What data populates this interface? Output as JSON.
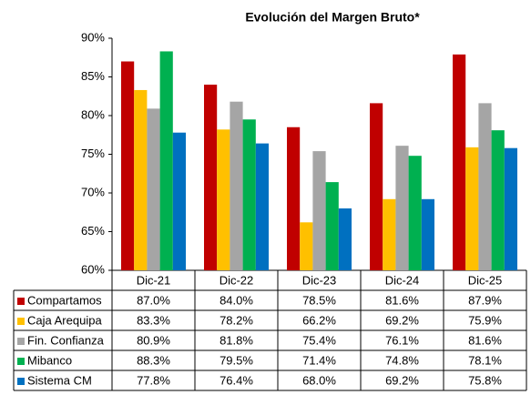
{
  "chart_data": {
    "type": "bar",
    "title": "Evolución del Margen Bruto*",
    "categories": [
      "Dic-21",
      "Dic-22",
      "Dic-23",
      "Dic-24",
      "Dic-25"
    ],
    "series": [
      {
        "name": "Compartamos",
        "color": "#c00000",
        "values": [
          87.0,
          84.0,
          78.5,
          81.6,
          87.9
        ],
        "value_labels": [
          "87.0%",
          "84.0%",
          "78.5%",
          "81.6%",
          "87.9%"
        ]
      },
      {
        "name": "Caja Arequipa",
        "color": "#ffc000",
        "values": [
          83.3,
          78.2,
          66.2,
          69.2,
          75.9
        ],
        "value_labels": [
          "83.3%",
          "78.2%",
          "66.2%",
          "69.2%",
          "75.9%"
        ]
      },
      {
        "name": "Fin. Confianza",
        "color": "#a5a5a5",
        "values": [
          80.9,
          81.8,
          75.4,
          76.1,
          81.6
        ],
        "value_labels": [
          "80.9%",
          "81.8%",
          "75.4%",
          "76.1%",
          "81.6%"
        ]
      },
      {
        "name": "Mibanco",
        "color": "#00b050",
        "values": [
          88.3,
          79.5,
          71.4,
          74.8,
          78.1
        ],
        "value_labels": [
          "88.3%",
          "79.5%",
          "71.4%",
          "74.8%",
          "78.1%"
        ]
      },
      {
        "name": "Sistema CM",
        "color": "#0070c0",
        "values": [
          77.8,
          76.4,
          68.0,
          69.2,
          75.8
        ],
        "value_labels": [
          "77.8%",
          "76.4%",
          "68.0%",
          "69.2%",
          "75.8%"
        ]
      }
    ],
    "ylim": [
      60,
      90
    ],
    "yticks": [
      {
        "value": 60,
        "label": "60%"
      },
      {
        "value": 65,
        "label": "65%"
      },
      {
        "value": 70,
        "label": "70%"
      },
      {
        "value": 75,
        "label": "75%"
      },
      {
        "value": 80,
        "label": "80%"
      },
      {
        "value": 85,
        "label": "85%"
      },
      {
        "value": 90,
        "label": "90%"
      }
    ],
    "grid": false
  }
}
